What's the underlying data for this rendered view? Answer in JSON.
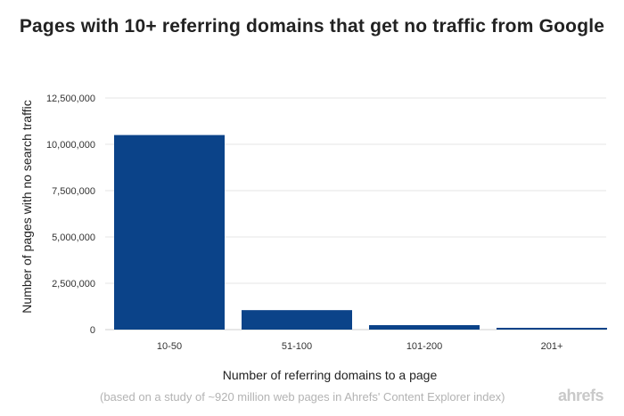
{
  "chart_data": {
    "type": "bar",
    "title": "Pages with 10+ referring domains that get no traffic from Google",
    "xlabel": "Number of referring domains to a page",
    "ylabel": "Number of pages with no search traffic",
    "categories": [
      "10-50",
      "51-100",
      "101-200",
      "201+"
    ],
    "values": [
      10500000,
      1050000,
      240000,
      70000
    ],
    "ylim": [
      0,
      12500000
    ],
    "yticks": [
      0,
      2500000,
      5000000,
      7500000,
      10000000,
      12500000
    ],
    "ytick_labels": [
      "0",
      "2,500,000",
      "5,000,000",
      "7,500,000",
      "10,000,000",
      "12,500,000"
    ],
    "bar_color": "#0b4389",
    "grid": true,
    "legend": "none"
  },
  "footer": {
    "note": "(based on a study of ~920 million web pages in Ahrefs' Content Explorer index)",
    "brand": "ahrefs"
  }
}
